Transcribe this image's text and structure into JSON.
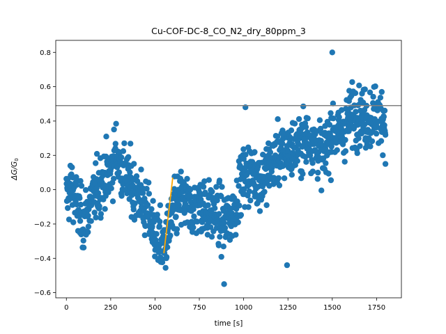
{
  "chart_data": {
    "type": "scatter",
    "title": "Cu-COF-DC-8_CO_N2_dry_80ppm_3",
    "xlabel": "time [s]",
    "ylabel_main": "ΔG/G",
    "ylabel_sub": "0",
    "xlim": [
      -60,
      1890
    ],
    "ylim": [
      -0.63,
      0.87
    ],
    "xticks": [
      0,
      250,
      500,
      750,
      1000,
      1250,
      1500,
      1750
    ],
    "yticks": [
      -0.6,
      -0.4,
      -0.2,
      0.0,
      0.2,
      0.4,
      0.6,
      0.8
    ],
    "ytick_labels": [
      "−0.6",
      "−0.4",
      "−0.2",
      "0.0",
      "0.2",
      "0.4",
      "0.6",
      "0.8"
    ],
    "grid": false,
    "colors": {
      "points": "#1f77b4",
      "fit_line": "#ffa500",
      "threshold_line": "#808080"
    },
    "threshold": {
      "y": 0.49
    },
    "fit_line": {
      "x": [
        550,
        600
      ],
      "y": [
        -0.37,
        0.07
      ]
    },
    "trend": {
      "x": [
        0,
        25,
        50,
        75,
        100,
        150,
        200,
        250,
        280,
        300,
        350,
        400,
        450,
        500,
        550,
        600,
        650,
        700,
        750,
        800,
        850,
        900,
        950,
        1000,
        1050,
        1100,
        1150,
        1200,
        1250,
        1300,
        1350,
        1400,
        1450,
        1500,
        1550,
        1600,
        1650,
        1700,
        1750,
        1800
      ],
      "y": [
        -0.05,
        0.02,
        -0.05,
        -0.15,
        -0.18,
        -0.05,
        0.05,
        0.1,
        0.22,
        0.15,
        0.05,
        -0.02,
        -0.12,
        -0.25,
        -0.35,
        -0.15,
        -0.05,
        -0.12,
        -0.08,
        -0.12,
        -0.15,
        -0.2,
        -0.1,
        0.08,
        0.1,
        0.05,
        0.15,
        0.2,
        0.22,
        0.25,
        0.3,
        0.28,
        0.18,
        0.35,
        0.32,
        0.42,
        0.45,
        0.4,
        0.45,
        0.42
      ]
    },
    "outliers": [
      {
        "x": 1500,
        "y": 0.8
      },
      {
        "x": 1245,
        "y": -0.44
      },
      {
        "x": 890,
        "y": -0.55
      },
      {
        "x": 1010,
        "y": 0.48
      },
      {
        "x": 1800,
        "y": 0.15
      }
    ]
  }
}
